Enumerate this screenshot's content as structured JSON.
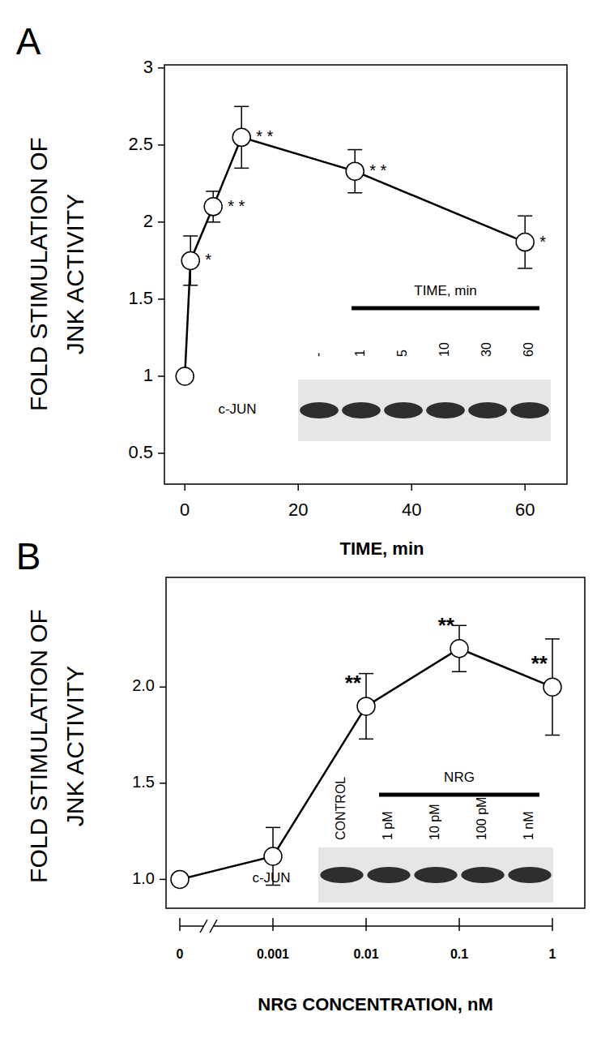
{
  "chart_data": [
    {
      "type": "line",
      "title": "A",
      "x_label": "TIME,  min",
      "y_label": [
        "FOLD STIMULATION OF",
        "JNK ACTIVITY"
      ],
      "x": [
        0,
        1,
        5,
        10,
        30,
        60
      ],
      "values": [
        1,
        1.75,
        2.1,
        2.55,
        2.33,
        1.87
      ],
      "error": [
        null,
        0.16,
        0.1,
        0.2,
        0.14,
        0.17
      ],
      "significance": [
        null,
        "*",
        "* *",
        "* *",
        "* *",
        "*"
      ],
      "xlim": [
        -3.6,
        67.4
      ],
      "xticks": [
        0,
        20,
        40,
        60
      ],
      "ylim": [
        0.3,
        3.02
      ],
      "yticks": [
        0.5,
        1,
        1.5,
        2,
        2.5,
        3
      ],
      "marker": "circle",
      "color": "#000000",
      "inset": {
        "row_label": "c-JUN",
        "bar_label": "TIME, min",
        "lanes": [
          "-",
          "1",
          "5",
          "10",
          "30",
          "60"
        ]
      }
    },
    {
      "type": "line",
      "title": "B",
      "x_label": "NRG CONCENTRATION, nM",
      "y_label": [
        "FOLD STIMULATION OF",
        "JNK ACTIVITY"
      ],
      "categories": [
        "0",
        "0.001",
        "0.01",
        "0.1",
        "1"
      ],
      "values": [
        1,
        1.12,
        1.9,
        2.2,
        2.0
      ],
      "error": [
        null,
        0.15,
        0.17,
        0.12,
        0.25
      ],
      "significance": [
        null,
        null,
        "**",
        "**",
        "**"
      ],
      "ylim": [
        0.85,
        2.57
      ],
      "yticks": [
        {
          "value": 1,
          "label": "1.0"
        },
        {
          "value": 1.5,
          "label": "1.5"
        },
        {
          "value": 2,
          "label": "2.0"
        }
      ],
      "marker": "circle",
      "color": "#000000",
      "inset": {
        "row_label": "c-JUN",
        "bar_label": "NRG",
        "lanes": [
          "CONTROL",
          "1 pM",
          "10 pM",
          "100 pM",
          "1 nM"
        ]
      }
    }
  ]
}
